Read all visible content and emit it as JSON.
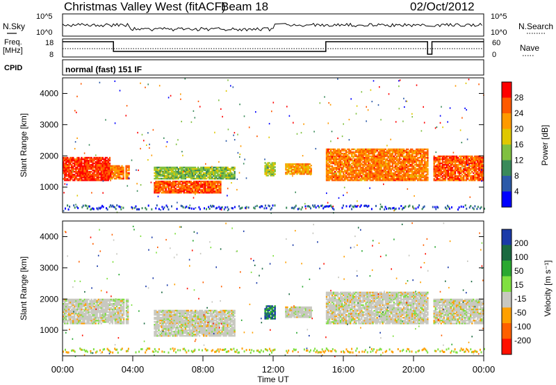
{
  "header": {
    "station": "Christmas Valley West (fitACF)",
    "beam": "Beam 18",
    "date": "02/Oct/2012"
  },
  "top_panels": {
    "nsky_label": "N.Sky",
    "nsearch_label": "N.Search",
    "freq_label_1": "Freq.",
    "freq_label_2": "[MHz]",
    "nave_label": "Nave",
    "cpid_label": "CPID",
    "noise_left_ticks": [
      "10^5",
      "10^0"
    ],
    "noise_right_ticks": [
      "10^5",
      "10^0"
    ],
    "freq_left_ticks": [
      "18",
      "8"
    ],
    "freq_right_ticks": [
      "60",
      "0"
    ],
    "cpid_text": "normal (fast) 151 IF"
  },
  "power_panel": {
    "ylabel": "Slant Range [km]",
    "colorbar_label": "Power [dB]",
    "colorbar_ticks": [
      "28",
      "24",
      "20",
      "16",
      "12",
      "8",
      "4"
    ],
    "colors": [
      "#ff0000",
      "#ff5a00",
      "#ff9a00",
      "#e0c800",
      "#80c040",
      "#3a8a5a",
      "#2c5aa8",
      "#0000ff"
    ]
  },
  "velocity_panel": {
    "ylabel": "Slant Range [km]",
    "colorbar_label": "Velocity [m s⁻¹]",
    "colorbar_ticks": [
      "200",
      "100",
      "50",
      "15",
      "-15",
      "-50",
      "-100",
      "-200"
    ],
    "colors": [
      "#1a3aa8",
      "#1a6a40",
      "#2aa830",
      "#80e040",
      "#c8c8c0",
      "#ffa000",
      "#ff6000",
      "#ff1000"
    ]
  },
  "xaxis": {
    "ticks": [
      "00:00",
      "04:00",
      "08:00",
      "12:00",
      "16:00",
      "20:00",
      "00:00"
    ],
    "label": "Time UT"
  },
  "chart_data": {
    "type": "heatmap",
    "title": "Christmas Valley West (fitACF) Beam 18 02/Oct/2012",
    "xlabel": "Time UT",
    "ylabel": "Slant Range [km]",
    "x_range_hours": [
      0,
      24
    ],
    "y_range_km": [
      180,
      4500
    ],
    "y_ticks_km": [
      1000,
      2000,
      3000,
      4000
    ],
    "data_gaps_hours": [
      [
        3.45,
        3.55
      ],
      [
        3.75,
        3.85
      ],
      [
        12.1,
        12.6
      ],
      [
        20.8,
        21.05
      ]
    ],
    "power_regions": [
      {
        "t0": 0.0,
        "t1": 2.7,
        "r0": 1200,
        "r1": 1950,
        "db": 26,
        "desc": "band"
      },
      {
        "t0": 2.7,
        "t1": 3.8,
        "r0": 1250,
        "r1": 1700,
        "db": 22,
        "desc": "band"
      },
      {
        "t0": 5.2,
        "t1": 9.8,
        "r0": 1250,
        "r1": 1650,
        "db": 12,
        "desc": "band"
      },
      {
        "t0": 5.2,
        "t1": 9.0,
        "r0": 800,
        "r1": 1200,
        "db": 24,
        "desc": "arc"
      },
      {
        "t0": 11.5,
        "t1": 12.1,
        "r0": 1350,
        "r1": 1800,
        "db": 14,
        "desc": "patch"
      },
      {
        "t0": 12.6,
        "t1": 14.2,
        "r0": 1400,
        "r1": 1750,
        "db": 20,
        "desc": "band"
      },
      {
        "t0": 15.0,
        "t1": 20.8,
        "r0": 1200,
        "r1": 2200,
        "db": 22,
        "desc": "band"
      },
      {
        "t0": 21.05,
        "t1": 24.0,
        "r0": 1200,
        "r1": 2000,
        "db": 24,
        "desc": "band"
      }
    ],
    "velocity_regions": [
      {
        "t0": 0.0,
        "t1": 3.8,
        "r0": 1200,
        "r1": 2000,
        "v": 0
      },
      {
        "t0": 5.2,
        "t1": 9.8,
        "r0": 800,
        "r1": 1650,
        "v": -10
      },
      {
        "t0": 11.5,
        "t1": 12.1,
        "r0": 1350,
        "r1": 1800,
        "v": 100
      },
      {
        "t0": 12.6,
        "t1": 14.2,
        "r0": 1400,
        "r1": 1750,
        "v": 0
      },
      {
        "t0": 15.0,
        "t1": 20.8,
        "r0": 1200,
        "r1": 2200,
        "v": 0
      },
      {
        "t0": 21.05,
        "t1": 24.0,
        "r0": 1200,
        "r1": 2000,
        "v": 0
      }
    ]
  }
}
